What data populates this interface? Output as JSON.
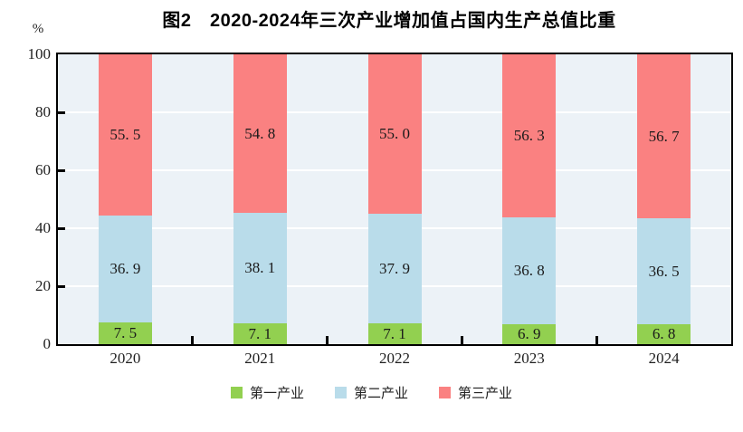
{
  "chart_data": {
    "type": "bar",
    "stacked": true,
    "title": "图2　2020-2024年三次产业增加值占国内生产总值比重",
    "ylabel": "%",
    "xlabel": "",
    "ylim": [
      0,
      100
    ],
    "yticks": [
      0,
      20,
      40,
      60,
      80,
      100
    ],
    "grid": "horizontal",
    "legend_position": "bottom",
    "categories": [
      "2020",
      "2021",
      "2022",
      "2023",
      "2024"
    ],
    "series": [
      {
        "name": "第一产业",
        "color": "#92d050",
        "values": [
          7.5,
          7.1,
          7.1,
          6.9,
          6.8
        ]
      },
      {
        "name": "第二产业",
        "color": "#b9dcea",
        "values": [
          36.9,
          38.1,
          37.9,
          36.8,
          36.5
        ]
      },
      {
        "name": "第三产业",
        "color": "#fa8181",
        "values": [
          55.5,
          54.8,
          55.0,
          56.3,
          56.7
        ]
      }
    ],
    "colors": {
      "plot_bg": "#ecf2f7",
      "gridline": "#ffffff",
      "axis": "#000000",
      "text": "#1f1f1f"
    }
  }
}
